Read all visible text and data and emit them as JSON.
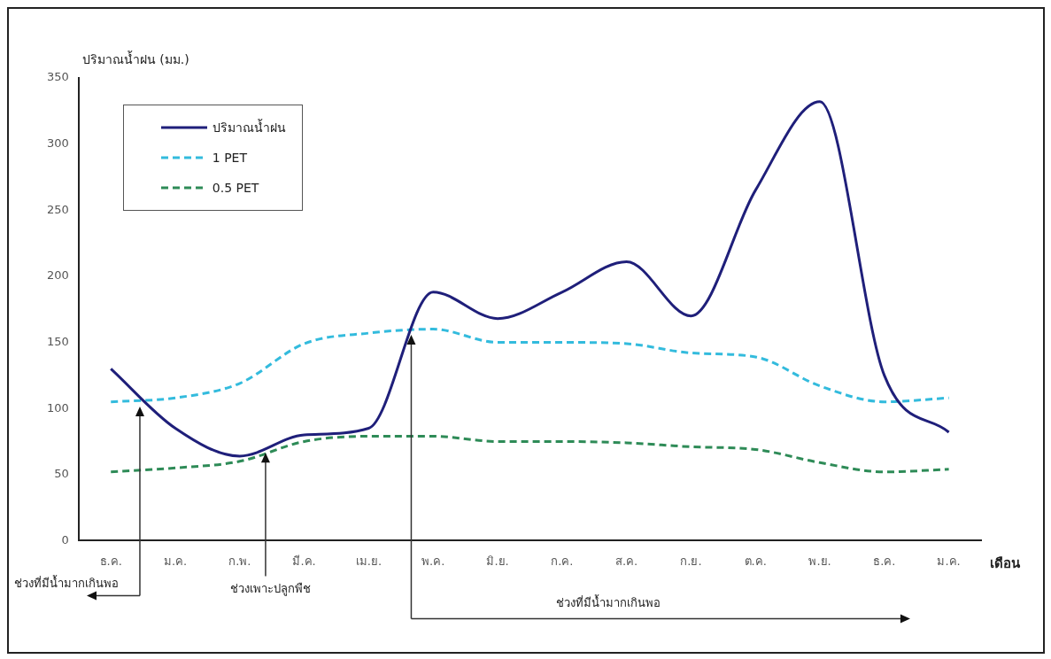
{
  "chart_data": {
    "type": "line",
    "ylabel": "ปริมาณน้ำฝน (มม.)",
    "xlabel": "เดือน",
    "categories": [
      "ธ.ค.",
      "ม.ค.",
      "ก.พ.",
      "มี.ค.",
      "เม.ย.",
      "พ.ค.",
      "มิ.ย.",
      "ก.ค.",
      "ส.ค.",
      "ก.ย.",
      "ต.ค.",
      "พ.ย.",
      "ธ.ค.",
      "ม.ค."
    ],
    "series": [
      {
        "name": "ปริมาณน้ำฝน",
        "color": "#1f1f7a",
        "line_style": "solid",
        "values": [
          130,
          85,
          64,
          80,
          85,
          188,
          168,
          188,
          211,
          170,
          265,
          332,
          125,
          82
        ]
      },
      {
        "name": "1 PET",
        "color": "#33bbdd",
        "line_style": "dashed",
        "values": [
          105,
          108,
          119,
          149,
          157,
          160,
          150,
          150,
          149,
          142,
          139,
          117,
          105,
          108
        ]
      },
      {
        "name": "0.5 PET",
        "color": "#2e8b57",
        "line_style": "dashed",
        "values": [
          52,
          55,
          60,
          75,
          79,
          79,
          75,
          75,
          74,
          71,
          69,
          59,
          52,
          54
        ]
      }
    ],
    "ylim": [
      0,
      350
    ],
    "yticks": [
      0,
      50,
      100,
      150,
      200,
      250,
      300,
      350
    ],
    "grid": false,
    "legend": "top left",
    "marker": "none",
    "annotations": [
      "ช่วงที่มีน้ำมากเกินพอ",
      "ช่วงเพาะปลูกพืช",
      "ช่วงที่มีน้ำมากเกินพอ"
    ]
  }
}
